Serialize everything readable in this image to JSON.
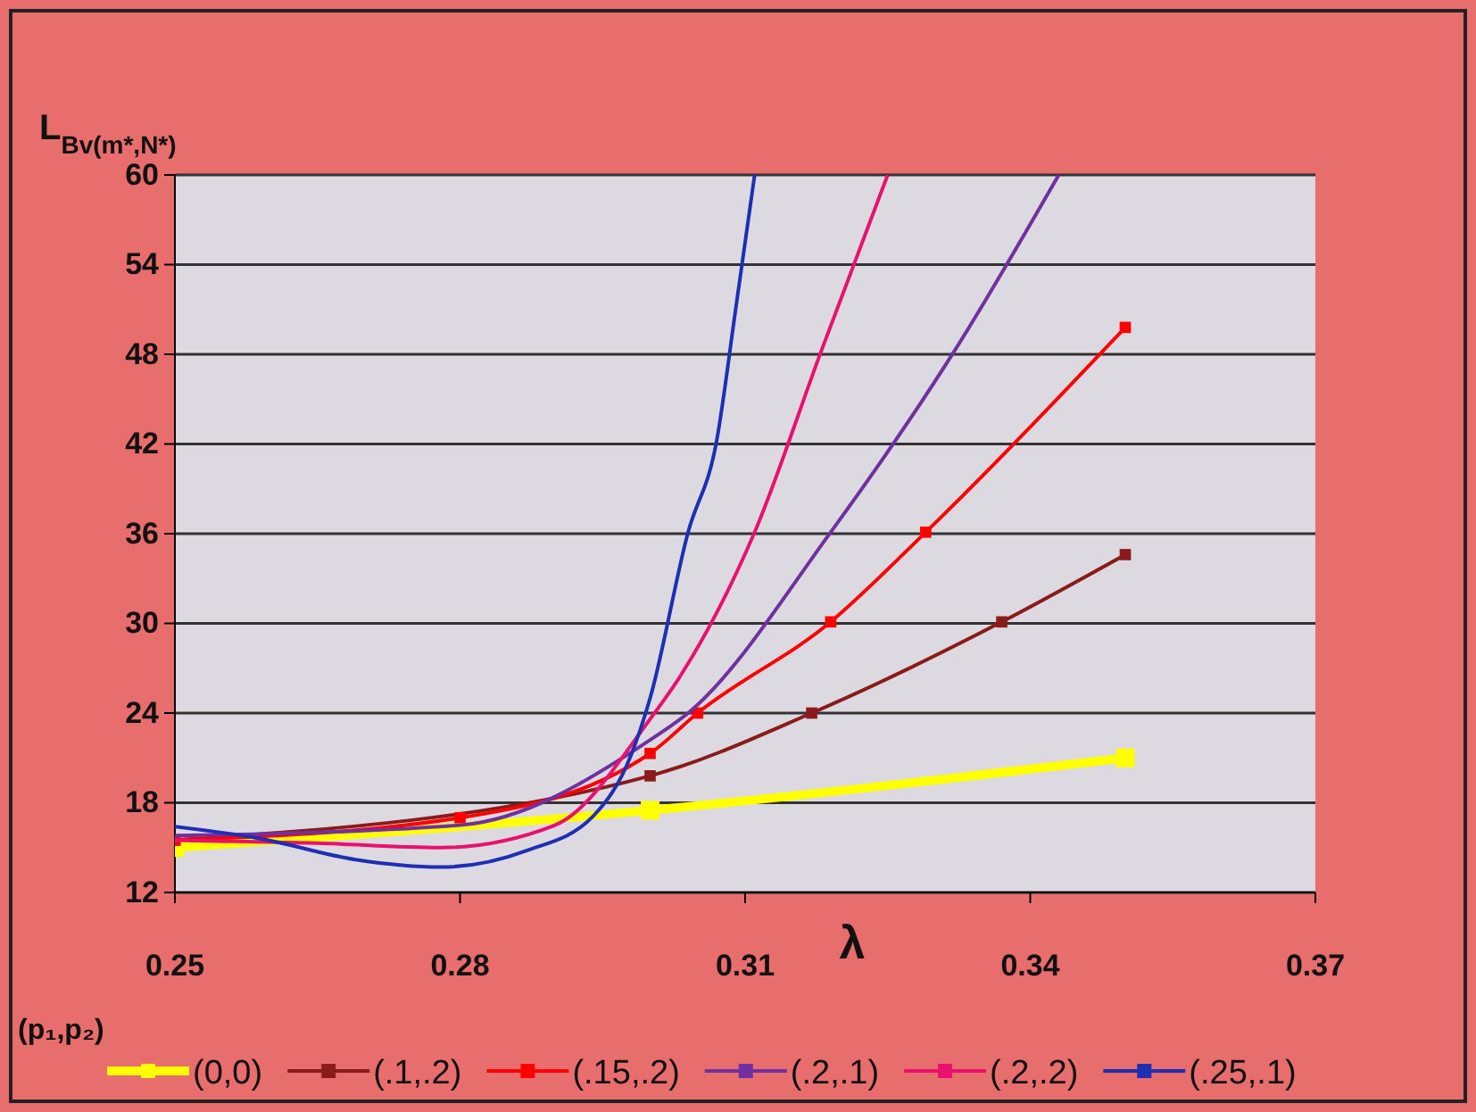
{
  "chart_data": {
    "type": "line",
    "ylabel": "L$_{Bv(m*,N*)}$",
    "xlabel": "λ",
    "legend_title": "(p₁,p₂)",
    "xlim": [
      0.25,
      0.37
    ],
    "xticks": [
      0.25,
      0.28,
      0.31,
      0.34,
      0.37
    ],
    "ylim": [
      12,
      60
    ],
    "yticks": [
      12,
      18,
      24,
      30,
      36,
      42,
      48,
      54,
      60
    ],
    "grid": "y",
    "legend": "bottom",
    "series": [
      {
        "name": "(0,0)",
        "color": "#ffff00",
        "marker": "square",
        "x": [
          0.25,
          0.3,
          0.35
        ],
        "values": [
          15,
          17.5,
          21
        ]
      },
      {
        "name": "(.1,.2)",
        "color": "#8b1a1a",
        "marker": "square",
        "x": [
          0.25,
          0.3,
          0.317,
          0.337,
          0.35
        ],
        "values": [
          15.5,
          19.8,
          24,
          30.1,
          34.6
        ]
      },
      {
        "name": "(.15,.2)",
        "color": "#ff0000",
        "marker": "square",
        "x": [
          0.25,
          0.28,
          0.3,
          0.305,
          0.319,
          0.329,
          0.35
        ],
        "values": [
          15.5,
          17,
          21.3,
          24,
          30.1,
          36.1,
          49.8
        ]
      },
      {
        "name": "(.2,.1)",
        "color": "#7030a0",
        "marker": "none",
        "x": [
          0.25,
          0.28,
          0.3,
          0.304,
          0.319,
          0.332,
          0.343
        ],
        "values": [
          15.8,
          16.5,
          22.2,
          24,
          36.1,
          48.2,
          60
        ]
      },
      {
        "name": "(.2,.2)",
        "color": "#e8116e",
        "marker": "none",
        "x": [
          0.25,
          0.265,
          0.278,
          0.29,
          0.3,
          0.303,
          0.311,
          0.318,
          0.325
        ],
        "values": [
          15.5,
          15.3,
          15,
          16.5,
          23.6,
          26.3,
          36.1,
          48.2,
          60
        ]
      },
      {
        "name": "(.25,.1)",
        "color": "#1f2fb4",
        "marker": "none",
        "x": [
          0.25,
          0.259,
          0.269,
          0.278,
          0.287,
          0.294,
          0.298,
          0.3,
          0.304,
          0.307,
          0.309,
          0.311
        ],
        "values": [
          16.4,
          15.6,
          14.2,
          13.7,
          14.8,
          17.1,
          21.2,
          25,
          36.1,
          42.2,
          51,
          60
        ]
      }
    ]
  }
}
